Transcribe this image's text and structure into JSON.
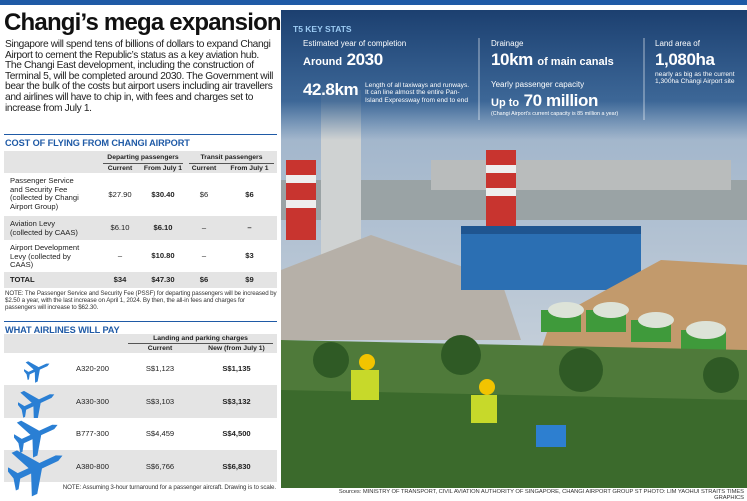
{
  "title": "Changi’s mega expansion",
  "intro": "Singapore will spend tens of billions of dollars to expand Changi Airport to cement the Republic’s status as a key aviation hub. The Changi East development, including the construction of Terminal 5, will be completed around 2030. The Government will bear the bulk of the costs but airport users including air travellers and airlines will have to chip in, with fees and charges set to increase from July 1.",
  "cost_table": {
    "heading": "COST OF FLYING FROM CHANGI AIRPORT",
    "groups": [
      "Departing passengers",
      "Transit passengers"
    ],
    "columns": [
      "Current",
      "From July 1",
      "Current",
      "From July 1"
    ],
    "rows": [
      [
        "Passenger Service and Security Fee (collected by Changi Airport Group)",
        "$27.90",
        "$30.40",
        "$6",
        "$6"
      ],
      [
        "Aviation Levy (collected by CAAS)",
        "$6.10",
        "$6.10",
        "–",
        "–"
      ],
      [
        "Airport Development Levy (collected by CAAS)",
        "–",
        "$10.80",
        "–",
        "$3"
      ],
      [
        "TOTAL",
        "$34",
        "$47.30",
        "$6",
        "$9"
      ]
    ],
    "note": "NOTE: The Passenger Service and Security Fee (PSSF) for departing passengers will be increased by $2.50 a year, with the last increase on April 1, 2024. By then, the all-in fees and charges for passengers will increase to $62.30."
  },
  "airlines_table": {
    "heading": "WHAT AIRLINES WILL PAY",
    "group": "Landing and parking charges",
    "columns": [
      "Current",
      "New (from July 1)"
    ],
    "rows": [
      [
        "A320-200",
        "S$1,123",
        "S$1,135"
      ],
      [
        "A330-300",
        "S$3,103",
        "S$3,132"
      ],
      [
        "B777-300",
        "S$4,459",
        "S$4,500"
      ],
      [
        "A380-800",
        "S$6,766",
        "S$6,830"
      ]
    ],
    "note": "NOTE: Assuming 3-hour turnaround for a passenger aircraft. Drawing is to scale."
  },
  "t5_stats": {
    "heading": "T5 KEY STATS",
    "completion": {
      "label": "Estimated year of completion",
      "prefix": "Around",
      "value": "2030"
    },
    "runways": {
      "value": "42.8km",
      "text": "Length of all taxiways and runways. It can line almost the entire Pan-Island Expressway from end to end"
    },
    "drainage": {
      "label": "Drainage",
      "value": "10km",
      "suffix": "of main canals"
    },
    "capacity": {
      "label": "Yearly passenger capacity",
      "prefix": "Up to",
      "value": "70 million",
      "note": "(Changi Airport’s current capacity is 85 million a year)"
    },
    "land": {
      "label": "Land area of",
      "value": "1,080ha",
      "text": "nearly as big as the current 1,300ha Changi Airport site"
    }
  },
  "sources": "Sources: MINISTRY OF TRANSPORT, CIVIL AVIATION AUTHORITY OF SINGAPORE, CHANGI AIRPORT GROUP   ST PHOTO: LIM YAOHUI   STRAITS TIMES GRAPHICS"
}
